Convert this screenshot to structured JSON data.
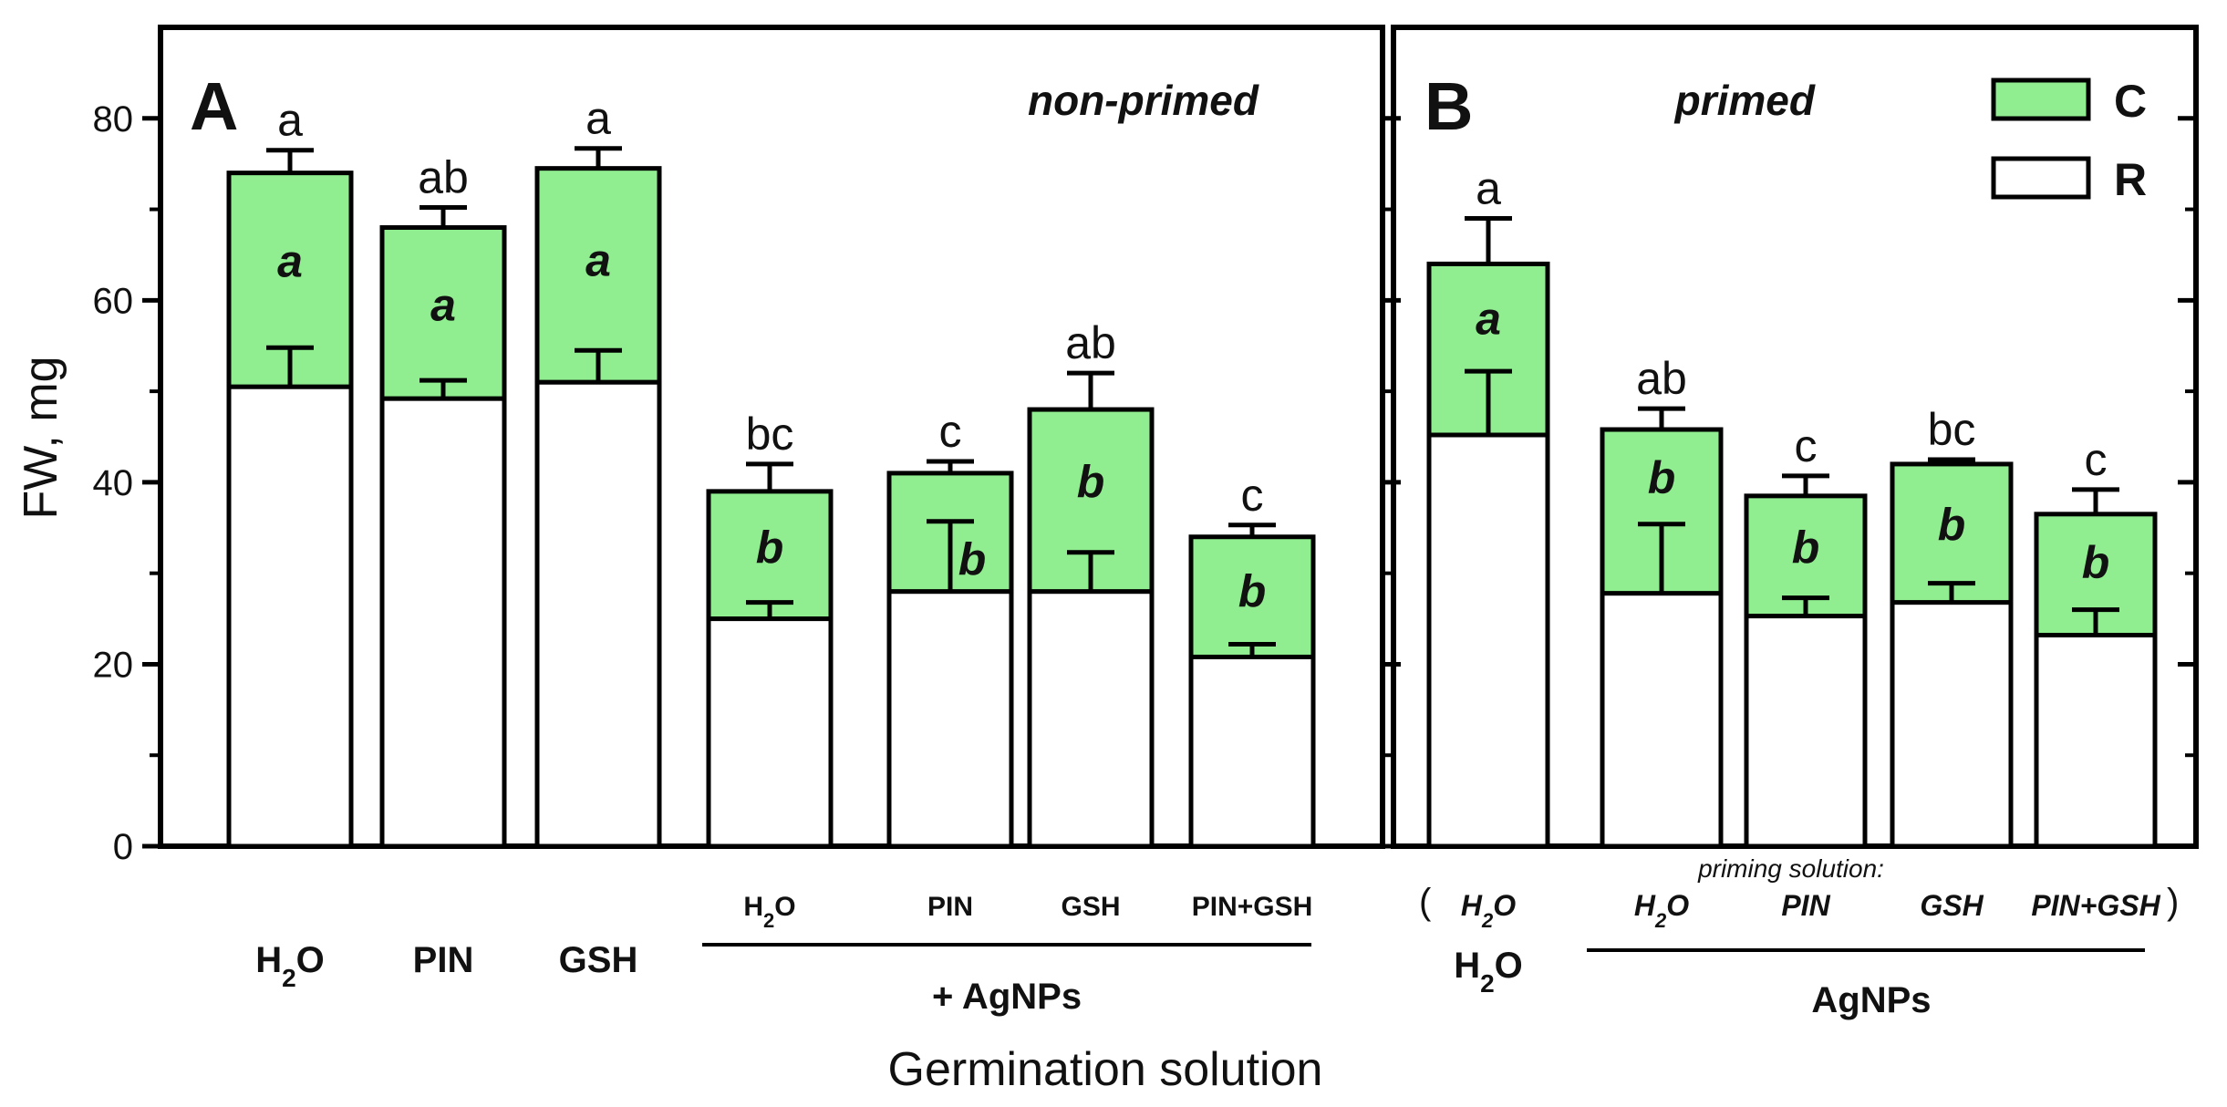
{
  "chart_data": {
    "type": "bar",
    "stacked": true,
    "ylabel": "FW, mg",
    "xlabel": "Germination solution",
    "ylim": [
      0,
      90
    ],
    "yticks": [
      0,
      20,
      40,
      60,
      80
    ],
    "grid": false,
    "legend": {
      "placement": "top-right",
      "entries": [
        {
          "label": "C",
          "color": "#90ee90"
        },
        {
          "label": "R",
          "color": "#ffffff"
        }
      ]
    },
    "colors": {
      "C": "#90ee90",
      "R": "#ffffff",
      "outline": "#000000"
    },
    "series": [
      {
        "name": "R",
        "color": "#ffffff"
      },
      {
        "name": "C",
        "color": "#90ee90"
      }
    ],
    "panels": [
      {
        "label": "A",
        "title": "non-primed",
        "group_label": "+ AgNPs",
        "categories": [
          {
            "label": "H2O",
            "sub": "",
            "r": 50.5,
            "r_err": 4.3,
            "total": 74.0,
            "total_err": 2.5,
            "letter_total": "a",
            "letter_seg": "a"
          },
          {
            "label": "PIN",
            "sub": "",
            "r": 49.2,
            "r_err": 2.0,
            "total": 68.0,
            "total_err": 2.2,
            "letter_total": "ab",
            "letter_seg": "a"
          },
          {
            "label": "GSH",
            "sub": "",
            "r": 51.0,
            "r_err": 3.5,
            "total": 74.5,
            "total_err": 2.2,
            "letter_total": "a",
            "letter_seg": "a"
          },
          {
            "label": "H2O",
            "sub": "",
            "r": 25.0,
            "r_err": 1.8,
            "total": 39.0,
            "total_err": 3.0,
            "letter_total": "bc",
            "letter_seg": "b"
          },
          {
            "label": "PIN",
            "sub": "",
            "r": 28.0,
            "r_err": 7.7,
            "total": 41.0,
            "total_err": 1.3,
            "letter_total": "c",
            "letter_seg": "b"
          },
          {
            "label": "GSH",
            "sub": "",
            "r": 28.0,
            "r_err": 4.3,
            "total": 48.0,
            "total_err": 4.0,
            "letter_total": "ab",
            "letter_seg": "b"
          },
          {
            "label": "PIN+GSH",
            "sub": "",
            "r": 20.8,
            "r_err": 1.4,
            "total": 34.0,
            "total_err": 1.3,
            "letter_total": "c",
            "letter_seg": "b"
          }
        ]
      },
      {
        "label": "B",
        "title": "primed",
        "group_label": "AgNPs",
        "priming_note": "priming solution:",
        "categories": [
          {
            "label": "H2O",
            "sub": "H2O",
            "r": 45.2,
            "r_err": 7.0,
            "total": 64.0,
            "total_err": 5.0,
            "letter_total": "a",
            "letter_seg": "a"
          },
          {
            "label": "",
            "sub": "H2O",
            "r": 27.8,
            "r_err": 7.6,
            "total": 45.8,
            "total_err": 2.3,
            "letter_total": "ab",
            "letter_seg": "b"
          },
          {
            "label": "",
            "sub": "PIN",
            "r": 25.3,
            "r_err": 2.0,
            "total": 38.5,
            "total_err": 2.2,
            "letter_total": "c",
            "letter_seg": "b"
          },
          {
            "label": "",
            "sub": "GSH",
            "r": 26.8,
            "r_err": 2.1,
            "total": 42.0,
            "total_err": 0.5,
            "letter_total": "bc",
            "letter_seg": "b"
          },
          {
            "label": "",
            "sub": "PIN+GSH",
            "r": 23.2,
            "r_err": 2.8,
            "total": 36.5,
            "total_err": 2.7,
            "letter_total": "c",
            "letter_seg": "b"
          }
        ]
      }
    ]
  }
}
